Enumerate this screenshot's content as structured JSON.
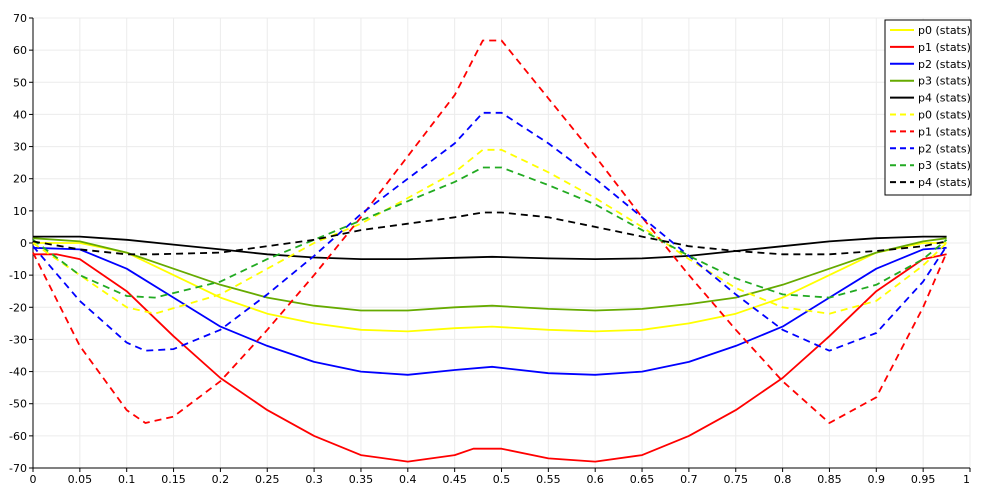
{
  "chart_data": {
    "type": "line",
    "title": "",
    "xlabel": "",
    "ylabel": "",
    "xlim": [
      0,
      1
    ],
    "ylim": [
      -70,
      70
    ],
    "x_ticks": [
      "0",
      "0.05",
      "0.1",
      "0.15",
      "0.2",
      "0.25",
      "0.3",
      "0.35",
      "0.4",
      "0.45",
      "0.5",
      "0.55",
      "0.6",
      "0.65",
      "0.7",
      "0.75",
      "0.8",
      "0.85",
      "0.9",
      "0.95",
      "1"
    ],
    "y_ticks": [
      "-70",
      "-60",
      "-50",
      "-40",
      "-30",
      "-20",
      "-10",
      "0",
      "10",
      "20",
      "30",
      "40",
      "50",
      "60",
      "70"
    ],
    "grid": true,
    "legend_position": "top-right",
    "series": [
      {
        "name": "p0 (stats)",
        "color": "#ffff00",
        "style": "solid",
        "points": [
          [
            0,
            0
          ],
          [
            0.05,
            0
          ],
          [
            0.1,
            -3
          ],
          [
            0.15,
            -10
          ],
          [
            0.2,
            -17
          ],
          [
            0.25,
            -22
          ],
          [
            0.3,
            -25
          ],
          [
            0.35,
            -27
          ],
          [
            0.4,
            -27.5
          ],
          [
            0.45,
            -26.5
          ],
          [
            0.49,
            -26
          ],
          [
            0.55,
            -27
          ],
          [
            0.6,
            -27.5
          ],
          [
            0.65,
            -27
          ],
          [
            0.7,
            -25
          ],
          [
            0.75,
            -22
          ],
          [
            0.8,
            -17
          ],
          [
            0.85,
            -10
          ],
          [
            0.9,
            -3
          ],
          [
            0.95,
            0
          ],
          [
            0.975,
            0
          ]
        ]
      },
      {
        "name": "p1 (stats)",
        "color": "#ff0000",
        "style": "solid",
        "points": [
          [
            0,
            -3.5
          ],
          [
            0.025,
            -3.5
          ],
          [
            0.05,
            -5
          ],
          [
            0.1,
            -15
          ],
          [
            0.15,
            -29
          ],
          [
            0.2,
            -42
          ],
          [
            0.25,
            -52
          ],
          [
            0.3,
            -60
          ],
          [
            0.35,
            -66
          ],
          [
            0.4,
            -68
          ],
          [
            0.45,
            -66
          ],
          [
            0.47,
            -64
          ],
          [
            0.5,
            -64
          ],
          [
            0.55,
            -67
          ],
          [
            0.6,
            -68
          ],
          [
            0.65,
            -66
          ],
          [
            0.7,
            -60
          ],
          [
            0.75,
            -52
          ],
          [
            0.8,
            -42
          ],
          [
            0.85,
            -29
          ],
          [
            0.9,
            -15
          ],
          [
            0.95,
            -5
          ],
          [
            0.975,
            -3.5
          ]
        ]
      },
      {
        "name": "p2 (stats)",
        "color": "#0000ff",
        "style": "solid",
        "points": [
          [
            0,
            -1.5
          ],
          [
            0.05,
            -2
          ],
          [
            0.1,
            -8
          ],
          [
            0.15,
            -17
          ],
          [
            0.2,
            -26
          ],
          [
            0.25,
            -32
          ],
          [
            0.3,
            -37
          ],
          [
            0.35,
            -40
          ],
          [
            0.4,
            -41
          ],
          [
            0.45,
            -39.5
          ],
          [
            0.49,
            -38.5
          ],
          [
            0.55,
            -40.5
          ],
          [
            0.6,
            -41
          ],
          [
            0.65,
            -40
          ],
          [
            0.7,
            -37
          ],
          [
            0.75,
            -32
          ],
          [
            0.8,
            -26
          ],
          [
            0.85,
            -17
          ],
          [
            0.9,
            -8
          ],
          [
            0.95,
            -2
          ],
          [
            0.975,
            -1.5
          ]
        ]
      },
      {
        "name": "p3 (stats)",
        "color": "#66aa00",
        "style": "solid",
        "points": [
          [
            0,
            1.5
          ],
          [
            0.05,
            0.5
          ],
          [
            0.1,
            -3
          ],
          [
            0.15,
            -8
          ],
          [
            0.2,
            -13
          ],
          [
            0.25,
            -17
          ],
          [
            0.3,
            -19.5
          ],
          [
            0.35,
            -21
          ],
          [
            0.4,
            -21
          ],
          [
            0.45,
            -20
          ],
          [
            0.49,
            -19.5
          ],
          [
            0.55,
            -20.5
          ],
          [
            0.6,
            -21
          ],
          [
            0.65,
            -20.5
          ],
          [
            0.7,
            -19
          ],
          [
            0.75,
            -17
          ],
          [
            0.8,
            -13
          ],
          [
            0.85,
            -8
          ],
          [
            0.9,
            -3
          ],
          [
            0.95,
            0.5
          ],
          [
            0.975,
            1.5
          ]
        ]
      },
      {
        "name": "p4 (stats)",
        "color": "#000000",
        "style": "solid",
        "points": [
          [
            0,
            2
          ],
          [
            0.05,
            2
          ],
          [
            0.1,
            1
          ],
          [
            0.15,
            -0.5
          ],
          [
            0.2,
            -2
          ],
          [
            0.25,
            -3.5
          ],
          [
            0.3,
            -4.5
          ],
          [
            0.35,
            -5
          ],
          [
            0.4,
            -5
          ],
          [
            0.45,
            -4.6
          ],
          [
            0.49,
            -4.3
          ],
          [
            0.55,
            -4.8
          ],
          [
            0.6,
            -5
          ],
          [
            0.65,
            -4.8
          ],
          [
            0.7,
            -4
          ],
          [
            0.75,
            -2.5
          ],
          [
            0.8,
            -1
          ],
          [
            0.85,
            0.5
          ],
          [
            0.9,
            1.5
          ],
          [
            0.95,
            2
          ],
          [
            0.975,
            2
          ]
        ]
      },
      {
        "name": "p0 (stats)",
        "color": "#ffff00",
        "style": "dashed",
        "points": [
          [
            0,
            0
          ],
          [
            0.05,
            -10
          ],
          [
            0.1,
            -20
          ],
          [
            0.13,
            -22
          ],
          [
            0.2,
            -16
          ],
          [
            0.25,
            -8
          ],
          [
            0.3,
            0
          ],
          [
            0.35,
            6
          ],
          [
            0.4,
            14
          ],
          [
            0.45,
            22
          ],
          [
            0.48,
            29
          ],
          [
            0.5,
            29
          ],
          [
            0.55,
            22
          ],
          [
            0.6,
            14
          ],
          [
            0.65,
            5
          ],
          [
            0.7,
            -5
          ],
          [
            0.75,
            -14
          ],
          [
            0.8,
            -20
          ],
          [
            0.85,
            -22
          ],
          [
            0.9,
            -18
          ],
          [
            0.95,
            -7
          ],
          [
            0.975,
            0
          ]
        ]
      },
      {
        "name": "p1 (stats)",
        "color": "#ff0000",
        "style": "dashed",
        "points": [
          [
            0,
            -3
          ],
          [
            0.05,
            -32
          ],
          [
            0.1,
            -52
          ],
          [
            0.12,
            -56
          ],
          [
            0.15,
            -54
          ],
          [
            0.2,
            -43
          ],
          [
            0.25,
            -27
          ],
          [
            0.3,
            -10
          ],
          [
            0.35,
            8
          ],
          [
            0.4,
            27
          ],
          [
            0.45,
            46
          ],
          [
            0.48,
            63
          ],
          [
            0.5,
            63
          ],
          [
            0.55,
            45
          ],
          [
            0.6,
            27
          ],
          [
            0.65,
            8
          ],
          [
            0.7,
            -10
          ],
          [
            0.75,
            -27
          ],
          [
            0.8,
            -43
          ],
          [
            0.85,
            -56
          ],
          [
            0.9,
            -48
          ],
          [
            0.95,
            -20
          ],
          [
            0.975,
            -3
          ]
        ]
      },
      {
        "name": "p2 (stats)",
        "color": "#0000ff",
        "style": "dashed",
        "points": [
          [
            0,
            -1
          ],
          [
            0.05,
            -18
          ],
          [
            0.1,
            -31
          ],
          [
            0.12,
            -33.5
          ],
          [
            0.15,
            -33
          ],
          [
            0.2,
            -27
          ],
          [
            0.25,
            -16
          ],
          [
            0.3,
            -4
          ],
          [
            0.35,
            9
          ],
          [
            0.4,
            20
          ],
          [
            0.45,
            31
          ],
          [
            0.48,
            40.5
          ],
          [
            0.5,
            40.5
          ],
          [
            0.55,
            31
          ],
          [
            0.6,
            20
          ],
          [
            0.65,
            8
          ],
          [
            0.7,
            -4
          ],
          [
            0.75,
            -16
          ],
          [
            0.8,
            -27
          ],
          [
            0.85,
            -33.5
          ],
          [
            0.9,
            -28
          ],
          [
            0.95,
            -12
          ],
          [
            0.975,
            -1
          ]
        ]
      },
      {
        "name": "p3 (stats)",
        "color": "#22aa22",
        "style": "dashed",
        "points": [
          [
            0,
            1
          ],
          [
            0.05,
            -10
          ],
          [
            0.1,
            -16.5
          ],
          [
            0.13,
            -17
          ],
          [
            0.2,
            -12
          ],
          [
            0.25,
            -5
          ],
          [
            0.3,
            1
          ],
          [
            0.35,
            7
          ],
          [
            0.4,
            13
          ],
          [
            0.45,
            19
          ],
          [
            0.48,
            23.5
          ],
          [
            0.5,
            23.5
          ],
          [
            0.55,
            18
          ],
          [
            0.6,
            12
          ],
          [
            0.65,
            4
          ],
          [
            0.7,
            -4
          ],
          [
            0.75,
            -11
          ],
          [
            0.8,
            -16
          ],
          [
            0.85,
            -17
          ],
          [
            0.9,
            -13
          ],
          [
            0.95,
            -5
          ],
          [
            0.975,
            1
          ]
        ]
      },
      {
        "name": "p4 (stats)",
        "color": "#000000",
        "style": "dashed",
        "points": [
          [
            0,
            0.5
          ],
          [
            0.05,
            -2
          ],
          [
            0.1,
            -3.5
          ],
          [
            0.13,
            -3.5
          ],
          [
            0.2,
            -3
          ],
          [
            0.25,
            -1
          ],
          [
            0.3,
            1
          ],
          [
            0.35,
            4
          ],
          [
            0.4,
            6
          ],
          [
            0.45,
            8
          ],
          [
            0.48,
            9.5
          ],
          [
            0.5,
            9.5
          ],
          [
            0.55,
            8
          ],
          [
            0.6,
            5
          ],
          [
            0.65,
            2
          ],
          [
            0.7,
            -1
          ],
          [
            0.75,
            -2.5
          ],
          [
            0.8,
            -3.5
          ],
          [
            0.85,
            -3.5
          ],
          [
            0.9,
            -2.5
          ],
          [
            0.95,
            -1
          ],
          [
            0.975,
            0.5
          ]
        ]
      }
    ]
  }
}
